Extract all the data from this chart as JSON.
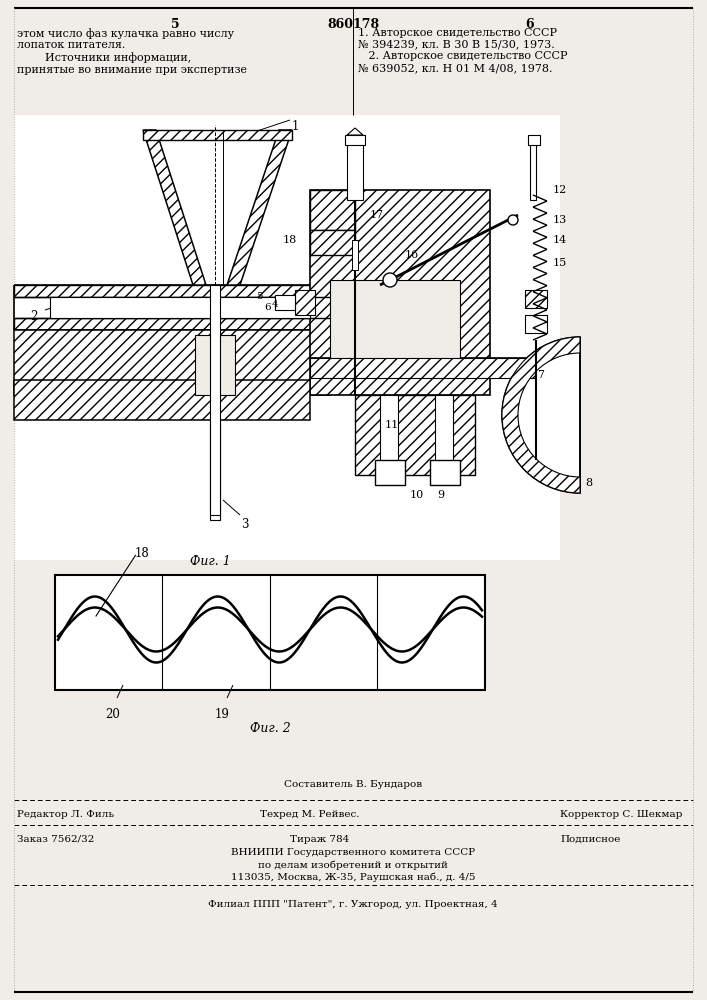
{
  "page_width": 7.07,
  "page_height": 10.0,
  "bg_color": "#f0ede8",
  "header_left_page": "5",
  "header_center": "860178",
  "header_right_page": "6",
  "text_left": "этом число фаз кулачка равно числу\nлопаток питателя.\n        Источники информации,\nпринятые во внимание при экспертизе",
  "text_right": "1. Авторское свидетельство СССР\n№ 394239, кл. В 30 В 15/30, 1973.\n   2. Авторское свидетельство СССР\n№ 639052, кл. Н 01 М 4/08, 1978.",
  "fig1_caption": "Фиг. 1",
  "fig2_caption": "Фиг. 2",
  "footer_compiled": "Составитель В. Бундаров",
  "footer_editor": "Редактор Л. Филь",
  "footer_tech": "Техред М. Рейвес.",
  "footer_corrector": "Корректор С. Шекмар",
  "footer_order": "Заказ 7562/32",
  "footer_copies": "Тираж 784",
  "footer_subscription": "Подписное",
  "footer_institute": "ВНИИПИ Государственного комитета СССР",
  "footer_dept": "по делам изобретений и открытий",
  "footer_address": "113035, Москва, Ж-35, Раушская наб., д. 4/5",
  "footer_branch": "Филиал ППП \"Патент\", г. Ужгород, ул. Проектная, 4"
}
